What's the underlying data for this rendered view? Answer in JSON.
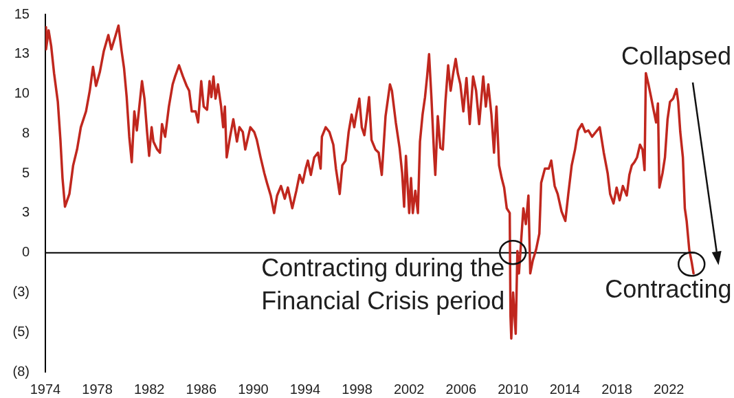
{
  "chart_data": {
    "type": "line",
    "x": [
      1974.0,
      1974.05,
      1974.25,
      1974.45,
      1974.67,
      1974.96,
      1975.16,
      1975.32,
      1975.51,
      1975.85,
      1976.14,
      1976.44,
      1976.73,
      1977.13,
      1977.42,
      1977.67,
      1977.9,
      1978.2,
      1978.5,
      1978.85,
      1979.08,
      1979.38,
      1979.63,
      1979.87,
      1980.06,
      1980.26,
      1980.46,
      1980.65,
      1980.85,
      1981.04,
      1981.44,
      1981.63,
      1981.83,
      1981.99,
      1982.18,
      1982.32,
      1982.61,
      1982.82,
      1982.98,
      1983.22,
      1983.51,
      1983.8,
      1983.99,
      1984.29,
      1984.59,
      1984.88,
      1985.07,
      1985.27,
      1985.57,
      1985.76,
      1986.0,
      1986.19,
      1986.45,
      1986.64,
      1986.78,
      1986.94,
      1987.1,
      1987.29,
      1987.53,
      1987.69,
      1987.82,
      1987.96,
      1988.22,
      1988.47,
      1988.75,
      1988.94,
      1989.2,
      1989.39,
      1989.78,
      1990.08,
      1990.28,
      1990.57,
      1990.86,
      1991.06,
      1991.35,
      1991.61,
      1991.84,
      1992.14,
      1992.43,
      1992.67,
      1993.01,
      1993.32,
      1993.57,
      1993.81,
      1994.04,
      1994.21,
      1994.44,
      1994.7,
      1994.99,
      1995.19,
      1995.29,
      1995.58,
      1995.87,
      1996.17,
      1996.37,
      1996.66,
      1996.86,
      1997.11,
      1997.35,
      1997.58,
      1997.78,
      1997.94,
      1998.17,
      1998.36,
      1998.56,
      1998.72,
      1998.92,
      1999.11,
      1999.41,
      1999.66,
      1999.9,
      2000.19,
      2000.53,
      2000.68,
      2000.98,
      2001.27,
      2001.47,
      2001.62,
      2001.76,
      2002.01,
      2002.15,
      2002.29,
      2002.48,
      2002.68,
      2002.84,
      2003.04,
      2003.23,
      2003.39,
      2003.54,
      2003.72,
      2003.92,
      2004.02,
      2004.21,
      2004.41,
      2004.6,
      2004.8,
      2005.01,
      2005.2,
      2005.4,
      2005.59,
      2005.75,
      2005.95,
      2006.18,
      2006.42,
      2006.67,
      2006.93,
      2007.16,
      2007.4,
      2007.71,
      2007.91,
      2008.1,
      2008.34,
      2008.54,
      2008.73,
      2008.93,
      2009.13,
      2009.32,
      2009.52,
      2009.75,
      2009.81,
      2009.87,
      2010.01,
      2010.21,
      2010.34,
      2010.46,
      2010.8,
      2010.99,
      2011.19,
      2011.33,
      2011.52,
      2011.78,
      2012.03,
      2012.17,
      2012.46,
      2012.76,
      2012.95,
      2013.21,
      2013.44,
      2013.74,
      2014.03,
      2014.26,
      2014.52,
      2014.78,
      2015.01,
      2015.31,
      2015.56,
      2015.8,
      2016.09,
      2016.38,
      2016.68,
      2016.99,
      2017.29,
      2017.48,
      2017.74,
      2017.98,
      2018.21,
      2018.46,
      2018.76,
      2018.96,
      2019.15,
      2019.35,
      2019.55,
      2019.78,
      2019.97,
      2020.13,
      2020.23,
      2020.43,
      2020.63,
      2020.82,
      2021.02,
      2021.16,
      2021.27,
      2021.51,
      2021.7,
      2021.9,
      2022.09,
      2022.33,
      2022.59,
      2022.72,
      2022.88,
      2023.08,
      2023.23,
      2023.37,
      2023.57,
      2023.76,
      2023.9
    ],
    "values": [
      14.2,
      12.8,
      14.0,
      13.0,
      11.3,
      9.5,
      7.1,
      4.7,
      2.9,
      3.7,
      5.5,
      6.5,
      7.9,
      8.9,
      10.2,
      11.7,
      10.5,
      11.4,
      12.7,
      13.7,
      12.8,
      13.6,
      14.3,
      12.7,
      11.6,
      9.8,
      7.3,
      5.7,
      8.9,
      7.7,
      10.8,
      9.7,
      7.6,
      6.1,
      7.9,
      7.0,
      6.5,
      6.3,
      8.1,
      7.3,
      9.2,
      10.6,
      11.1,
      11.8,
      11.1,
      10.5,
      10.2,
      8.9,
      8.9,
      8.2,
      10.8,
      9.2,
      9.0,
      10.8,
      9.8,
      11.1,
      9.7,
      10.6,
      9.2,
      7.9,
      9.2,
      6.0,
      7.3,
      8.4,
      7.0,
      7.9,
      7.6,
      6.5,
      7.9,
      7.6,
      7.1,
      6.0,
      5.0,
      4.4,
      3.6,
      2.5,
      3.6,
      4.2,
      3.4,
      4.1,
      2.8,
      3.9,
      4.9,
      4.4,
      5.3,
      5.8,
      4.9,
      6.0,
      6.3,
      5.3,
      7.3,
      7.9,
      7.6,
      6.8,
      5.3,
      3.7,
      5.5,
      5.8,
      7.6,
      8.7,
      7.9,
      8.7,
      9.7,
      7.9,
      7.4,
      8.4,
      9.8,
      7.1,
      6.5,
      6.3,
      4.9,
      8.6,
      10.6,
      10.2,
      8.2,
      6.6,
      5.0,
      2.9,
      6.1,
      2.5,
      4.7,
      2.5,
      3.9,
      2.5,
      7.0,
      8.7,
      9.8,
      11.1,
      12.5,
      9.8,
      6.3,
      4.9,
      8.6,
      6.6,
      6.5,
      9.5,
      11.8,
      10.2,
      11.3,
      12.2,
      11.3,
      10.6,
      8.9,
      11.0,
      8.1,
      11.1,
      10.2,
      8.1,
      11.1,
      9.2,
      10.6,
      8.7,
      6.3,
      9.2,
      5.5,
      4.7,
      4.1,
      2.8,
      2.5,
      -4.0,
      -5.4,
      -2.5,
      -5.1,
      0.1,
      -1.3,
      2.8,
      1.8,
      3.6,
      -1.3,
      -0.5,
      0.2,
      1.2,
      4.4,
      5.3,
      5.3,
      5.8,
      4.2,
      3.7,
      2.6,
      2.0,
      3.7,
      5.5,
      6.5,
      7.7,
      8.1,
      7.6,
      7.7,
      7.3,
      7.6,
      7.9,
      6.3,
      5.0,
      3.7,
      3.1,
      4.1,
      3.3,
      4.2,
      3.6,
      4.9,
      5.5,
      5.7,
      6.0,
      6.8,
      6.5,
      5.2,
      11.3,
      10.6,
      9.8,
      9.0,
      8.2,
      9.4,
      4.1,
      5.0,
      6.0,
      8.4,
      9.5,
      9.7,
      10.3,
      9.5,
      7.6,
      6.0,
      2.8,
      2.0,
      0.2,
      -0.6,
      -1.3
    ],
    "color": "#c0271e",
    "xlim": [
      1974,
      2024
    ],
    "xticks": [
      1974,
      1978,
      1982,
      1986,
      1990,
      1994,
      1998,
      2002,
      2006,
      2010,
      2014,
      2018,
      2022
    ],
    "ylim": [
      -7.5,
      15
    ],
    "yticks": [
      {
        "value": -7.5,
        "label": "(8)"
      },
      {
        "value": -5,
        "label": "(5)"
      },
      {
        "value": -2.5,
        "label": "(3)"
      },
      0,
      {
        "value": 2.5,
        "label": "3"
      },
      5,
      {
        "value": 7.5,
        "label": "8"
      },
      10,
      {
        "value": 12.5,
        "label": "13"
      },
      15
    ],
    "ref_lines": [
      {
        "axis": "y",
        "value": 0,
        "color": "#000000"
      }
    ],
    "annotations": [
      "Collapsed",
      {
        "text": "Contracting during the Financial Crisis period",
        "x": 2010.0,
        "y": 0
      },
      {
        "text": "Contracting",
        "x": 2023.76,
        "y": -0.7
      }
    ],
    "marker": "none",
    "line_style": "solid"
  }
}
